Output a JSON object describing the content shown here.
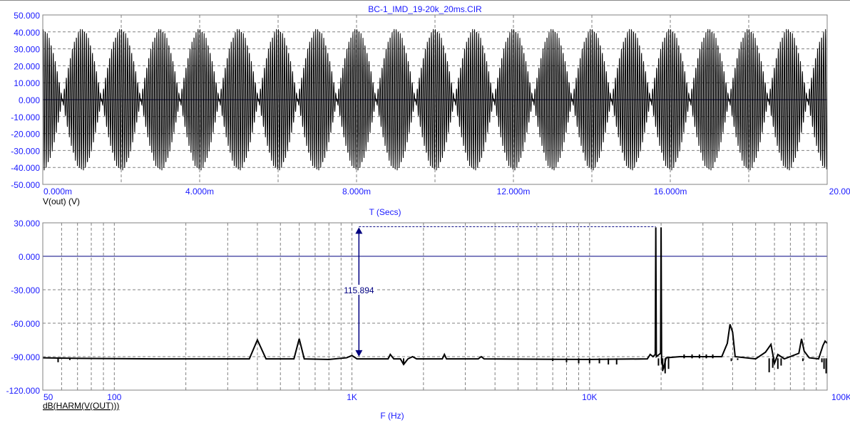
{
  "window_title": "BC-1_IMD_19-20k_20ms.CIR",
  "colors": {
    "axis_labels": "#1a1aff",
    "grid": "#808080",
    "trace": "#000000",
    "zero_line": "#000080",
    "measure": "#000080"
  },
  "chart_data": [
    {
      "type": "line",
      "title": "BC-1_IMD_19-20k_20ms.CIR",
      "xlabel": "T (Secs)",
      "ylabel": "V(out) (V)",
      "xlim": [
        0,
        0.02
      ],
      "ylim": [
        -50,
        50
      ],
      "x_ticks": [
        "0.000m",
        "4.000m",
        "8.000m",
        "12.000m",
        "16.000m",
        "20.000m"
      ],
      "y_ticks": [
        "50.000",
        "40.000",
        "30.000",
        "20.000",
        "10.000",
        "0.000",
        "-10.000",
        "-20.000",
        "-30.000",
        "-40.000",
        "-50.000"
      ],
      "grid": true,
      "series": [
        {
          "name": "V(out) (V)",
          "components_hz": [
            19000,
            20000
          ],
          "component_amplitude": 21,
          "peak": 42
        }
      ]
    },
    {
      "type": "line",
      "xscale": "log",
      "xlabel": "F (Hz)",
      "ylabel": "dB(HARM(V(OUT)))",
      "xlim": [
        50,
        100000
      ],
      "ylim": [
        -120,
        30
      ],
      "x_ticks": [
        "50",
        "100",
        "1K",
        "10K",
        "100K"
      ],
      "y_ticks": [
        "30.000",
        "0.000",
        "-30.000",
        "-60.000",
        "-90.000",
        "-120.000"
      ],
      "grid": true,
      "series": [
        {
          "name": "dB(HARM(V(OUT)))",
          "points": [
            [
              50,
              -91
            ],
            [
              70,
              -91.5
            ],
            [
              150,
              -92
            ],
            [
              370,
              -92
            ],
            [
              400,
              -75
            ],
            [
              435,
              -92
            ],
            [
              570,
              -92
            ],
            [
              600,
              -74
            ],
            [
              630,
              -92
            ],
            [
              800,
              -92.5
            ],
            [
              950,
              -91
            ],
            [
              1000,
              -89
            ],
            [
              1050,
              -92
            ],
            [
              1420,
              -92
            ],
            [
              1450,
              -88
            ],
            [
              1500,
              -92
            ],
            [
              1600,
              -92
            ],
            [
              1650,
              -97
            ],
            [
              1720,
              -92
            ],
            [
              1800,
              -90
            ],
            [
              1870,
              -92
            ],
            [
              2400,
              -92
            ],
            [
              2450,
              -88
            ],
            [
              2500,
              -92
            ],
            [
              3400,
              -92
            ],
            [
              3500,
              -90
            ],
            [
              3600,
              -92
            ],
            [
              10000,
              -92.5
            ],
            [
              17500,
              -92
            ],
            [
              18000,
              -88
            ],
            [
              18500,
              -90
            ],
            [
              18900,
              -88
            ],
            [
              19000,
              25.9
            ],
            [
              19100,
              -90
            ],
            [
              19900,
              -87
            ],
            [
              20000,
              25.9
            ],
            [
              20100,
              -95
            ],
            [
              20500,
              -100
            ],
            [
              21000,
              -91
            ],
            [
              24000,
              -90
            ],
            [
              30000,
              -90
            ],
            [
              36000,
              -90
            ],
            [
              38000,
              -78
            ],
            [
              39000,
              -61
            ],
            [
              40000,
              -68
            ],
            [
              41000,
              -90
            ],
            [
              50000,
              -92
            ],
            [
              55000,
              -86
            ],
            [
              58000,
              -79
            ],
            [
              60000,
              -96
            ],
            [
              62000,
              -88
            ],
            [
              66000,
              -92
            ],
            [
              76000,
              -87
            ],
            [
              78000,
              -74
            ],
            [
              80000,
              -85
            ],
            [
              84000,
              -91
            ],
            [
              92000,
              -92
            ],
            [
              96000,
              -80
            ],
            [
              98000,
              -76
            ],
            [
              100000,
              -78
            ]
          ]
        }
      ],
      "spikes": [
        [
          58,
          -95
        ],
        [
          65,
          -93
        ],
        [
          1650,
          -97
        ],
        [
          7000,
          -94
        ],
        [
          8000,
          -95
        ],
        [
          9000,
          -96
        ],
        [
          10000,
          -96
        ],
        [
          11000,
          -96
        ],
        [
          12000,
          -97
        ],
        [
          13000,
          -97
        ],
        [
          19500,
          -98
        ],
        [
          20300,
          -103
        ],
        [
          20800,
          -105
        ],
        [
          21500,
          -101
        ],
        [
          25000,
          -88
        ],
        [
          27000,
          -88
        ],
        [
          29000,
          -88
        ],
        [
          31000,
          -88
        ],
        [
          33000,
          -88
        ],
        [
          39500,
          -94
        ],
        [
          42000,
          -93
        ],
        [
          57000,
          -104
        ],
        [
          59000,
          -100
        ],
        [
          62000,
          -101
        ],
        [
          64000,
          -98
        ],
        [
          79000,
          -94
        ],
        [
          95000,
          -95
        ],
        [
          97000,
          -101
        ],
        [
          99000,
          -105
        ]
      ],
      "measurement": {
        "label": "115.894",
        "from": {
          "x": 1070,
          "y": -89.9
        },
        "to": {
          "x": 1070,
          "y": 25.9
        }
      }
    }
  ]
}
